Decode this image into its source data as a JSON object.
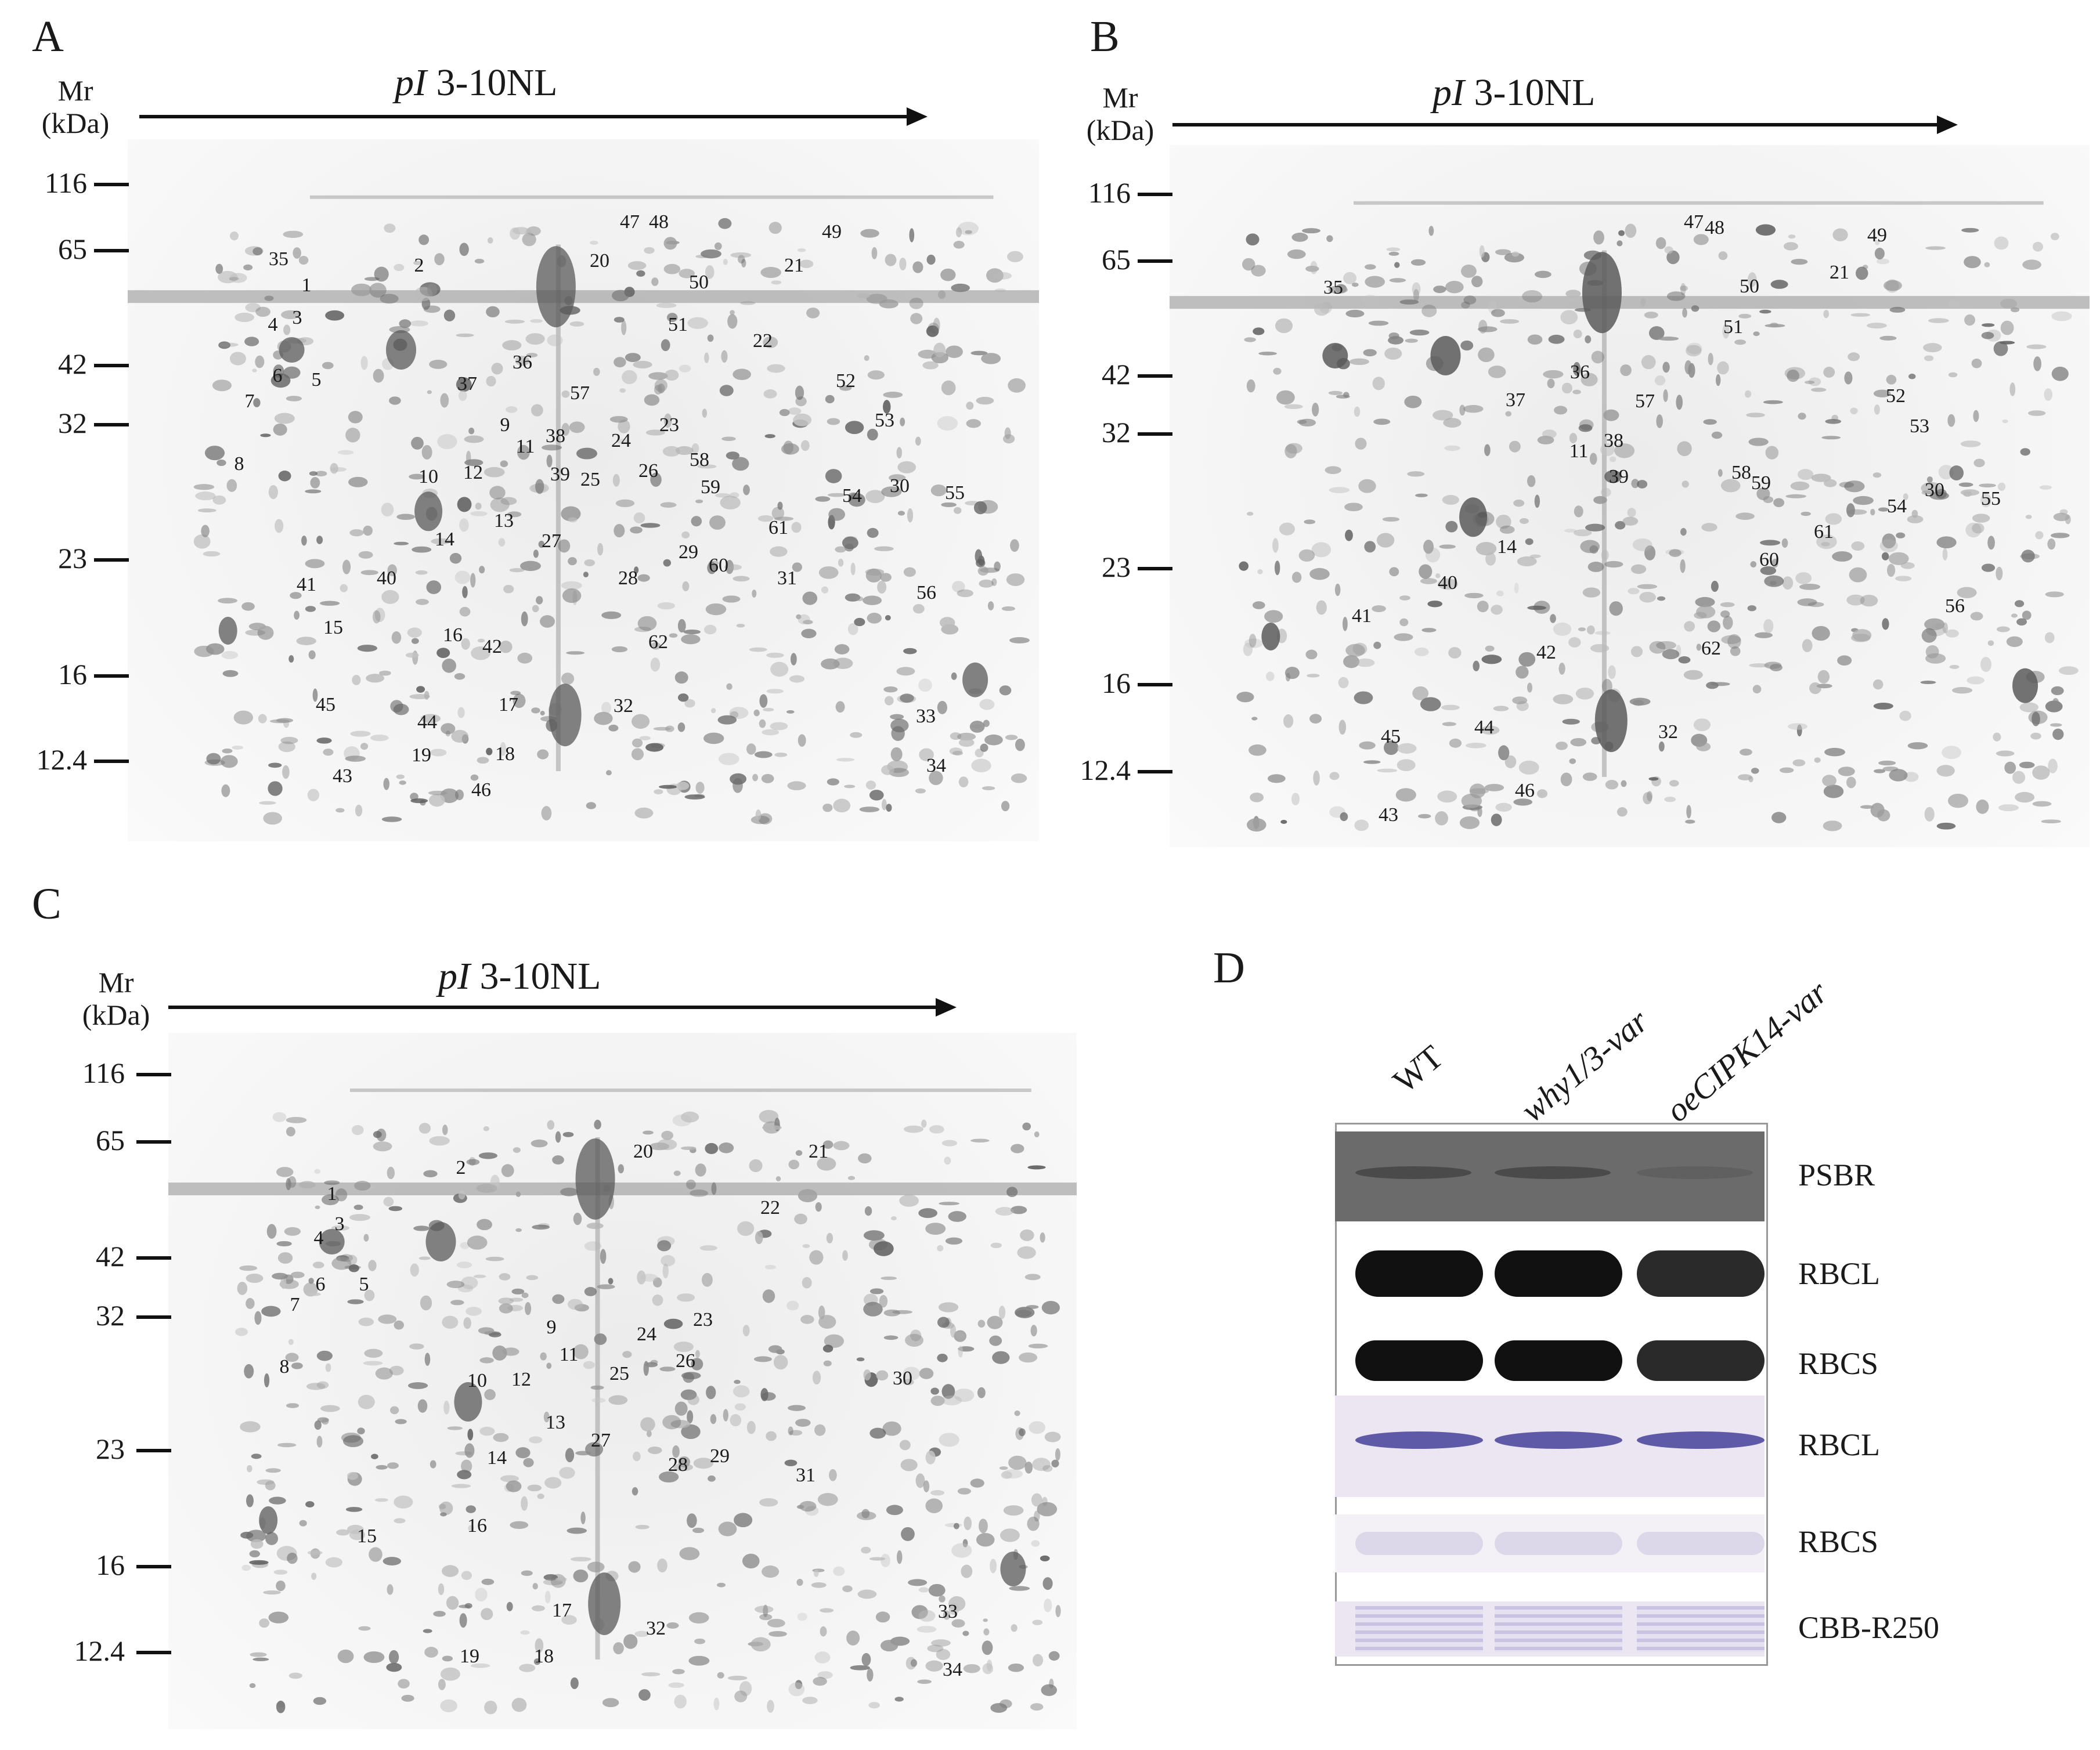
{
  "panels": [
    {
      "id": "A",
      "letter": "A",
      "mr": "Mr",
      "kda": "(kDa)",
      "pi": "pI",
      "pi_range": "3-10NL",
      "spots": [
        "1",
        "2",
        "3",
        "4",
        "5",
        "6",
        "7",
        "8",
        "9",
        "10",
        "11",
        "12",
        "13",
        "14",
        "15",
        "16",
        "17",
        "18",
        "19",
        "20",
        "21",
        "22",
        "23",
        "24",
        "25",
        "26",
        "27",
        "28",
        "29",
        "30",
        "31",
        "32",
        "33",
        "34",
        "35",
        "36",
        "37",
        "38",
        "39",
        "40",
        "41",
        "42",
        "43",
        "44",
        "45",
        "46",
        "47",
        "48",
        "49",
        "50",
        "51",
        "52",
        "53",
        "54",
        "55",
        "56",
        "57",
        "58",
        "59",
        "60",
        "61",
        "62"
      ]
    },
    {
      "id": "B",
      "letter": "B",
      "mr": "Mr",
      "kda": "(kDa)",
      "pi": "pI",
      "pi_range": "3-10NL",
      "spots": [
        "11",
        "14",
        "21",
        "30",
        "32",
        "35",
        "36",
        "37",
        "38",
        "39",
        "40",
        "41",
        "42",
        "43",
        "44",
        "45",
        "46",
        "47",
        "48",
        "49",
        "50",
        "51",
        "52",
        "53",
        "54",
        "55",
        "56",
        "57",
        "58",
        "59",
        "60",
        "61",
        "62"
      ]
    },
    {
      "id": "C",
      "letter": "C",
      "mr": "Mr",
      "kda": "(kDa)",
      "pi": "pI",
      "pi_range": "3-10NL",
      "spots": [
        "1",
        "2",
        "3",
        "4",
        "5",
        "6",
        "7",
        "8",
        "9",
        "10",
        "11",
        "12",
        "13",
        "14",
        "15",
        "16",
        "17",
        "18",
        "19",
        "20",
        "21",
        "22",
        "23",
        "24",
        "25",
        "26",
        "27",
        "28",
        "29",
        "30",
        "31",
        "32",
        "33",
        "34"
      ]
    }
  ],
  "markers": [
    "116",
    "65",
    "42",
    "32",
    "23",
    "16",
    "12.4"
  ],
  "panel_d": {
    "letter": "D",
    "lanes": [
      "WT",
      "why1/3-var",
      "oeCIPK14-var"
    ],
    "rows": [
      {
        "label": "PSBR",
        "style": "xray"
      },
      {
        "label": "RBCL",
        "style": "dark"
      },
      {
        "label": "RBCS",
        "style": "dark"
      },
      {
        "label": "RBCL",
        "style": "stain"
      },
      {
        "label": "RBCS",
        "style": "stain-faint"
      },
      {
        "label": "CBB-R250",
        "style": "stain-multi"
      }
    ]
  }
}
